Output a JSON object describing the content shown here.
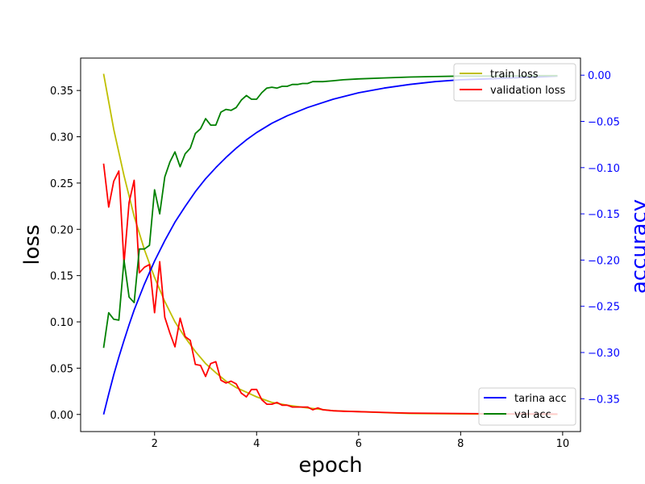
{
  "chart_data": {
    "type": "line",
    "xlabel": "epoch",
    "ylabel_left": "loss",
    "ylabel_right": "accuracy",
    "xlim": [
      0.55,
      10.35
    ],
    "ylim_left": [
      -0.0185,
      0.385
    ],
    "ylim_right": [
      -0.3855,
      0.0185
    ],
    "x_ticks": [
      2,
      4,
      6,
      8,
      10
    ],
    "y_ticks_left": [
      0.0,
      0.05,
      0.1,
      0.15,
      0.2,
      0.25,
      0.3,
      0.35
    ],
    "y_ticks_right": [
      -0.35,
      -0.3,
      -0.25,
      -0.2,
      -0.15,
      -0.1,
      -0.05,
      0.0
    ],
    "x_tick_labels": [
      "2",
      "4",
      "6",
      "8",
      "10"
    ],
    "y_tick_labels_left": [
      "0.00",
      "0.05",
      "0.10",
      "0.15",
      "0.20",
      "0.25",
      "0.30",
      "0.35"
    ],
    "y_tick_labels_right": [
      "−0.35",
      "−0.30",
      "−0.25",
      "−0.20",
      "−0.15",
      "−0.10",
      "−0.05",
      "0.00"
    ],
    "grid": false,
    "legends": [
      {
        "placement": "top-right",
        "entries": [
          "train loss",
          "validation loss"
        ]
      },
      {
        "placement": "bottom-right",
        "entries": [
          "tarina acc",
          "val acc"
        ]
      }
    ],
    "series": [
      {
        "name": "train loss",
        "axis": "left",
        "color": "#bfbf00",
        "x": [
          1.0,
          1.2,
          1.4,
          1.6,
          1.8,
          2.0,
          2.2,
          2.4,
          2.6,
          2.8,
          3.0,
          3.2,
          3.4,
          3.6,
          3.8,
          4.0,
          4.3,
          4.6,
          5.0,
          5.5,
          6.0,
          6.5,
          7.0,
          7.5,
          8.0,
          8.5,
          9.0,
          9.5,
          9.9
        ],
        "y": [
          0.368,
          0.308,
          0.258,
          0.214,
          0.178,
          0.148,
          0.122,
          0.1,
          0.083,
          0.068,
          0.055,
          0.045,
          0.036,
          0.029,
          0.024,
          0.019,
          0.013,
          0.01,
          0.007,
          0.004,
          0.003,
          0.002,
          0.001,
          0.0008,
          0.0006,
          0.0004,
          0.0003,
          0.0002,
          0.0001
        ]
      },
      {
        "name": "validation loss",
        "axis": "left",
        "color": "#ff0000",
        "x": [
          1.0,
          1.1,
          1.2,
          1.3,
          1.4,
          1.5,
          1.6,
          1.7,
          1.8,
          1.9,
          2.0,
          2.1,
          2.2,
          2.3,
          2.4,
          2.5,
          2.6,
          2.7,
          2.8,
          2.9,
          3.0,
          3.1,
          3.2,
          3.3,
          3.4,
          3.5,
          3.6,
          3.7,
          3.8,
          3.9,
          4.0,
          4.1,
          4.2,
          4.3,
          4.4,
          4.5,
          4.6,
          4.7,
          4.8,
          4.9,
          5.0,
          5.1,
          5.2,
          5.3,
          5.5,
          5.7,
          6.0,
          6.3,
          6.6,
          7.0,
          7.5,
          8.0,
          8.5,
          9.0,
          9.5,
          9.9
        ],
        "y": [
          0.271,
          0.224,
          0.252,
          0.263,
          0.163,
          0.229,
          0.253,
          0.153,
          0.159,
          0.162,
          0.11,
          0.165,
          0.105,
          0.088,
          0.073,
          0.104,
          0.084,
          0.08,
          0.054,
          0.053,
          0.041,
          0.055,
          0.057,
          0.037,
          0.034,
          0.036,
          0.033,
          0.023,
          0.019,
          0.027,
          0.027,
          0.016,
          0.011,
          0.011,
          0.013,
          0.01,
          0.01,
          0.008,
          0.008,
          0.008,
          0.008,
          0.005,
          0.007,
          0.005,
          0.004,
          0.0035,
          0.003,
          0.0025,
          0.002,
          0.0015,
          0.0012,
          0.001,
          0.0008,
          0.0006,
          0.0005,
          0.0004
        ]
      },
      {
        "name": "tarina acc",
        "axis": "right",
        "color": "#0000ff",
        "x": [
          1.0,
          1.1,
          1.2,
          1.3,
          1.4,
          1.5,
          1.6,
          1.8,
          2.0,
          2.2,
          2.4,
          2.6,
          2.8,
          3.0,
          3.2,
          3.4,
          3.6,
          3.8,
          4.0,
          4.3,
          4.6,
          5.0,
          5.5,
          6.0,
          6.5,
          7.0,
          7.5,
          8.0,
          8.5,
          9.0,
          9.5,
          9.9
        ],
        "y": [
          -0.367,
          -0.345,
          -0.324,
          -0.305,
          -0.287,
          -0.27,
          -0.254,
          -0.226,
          -0.201,
          -0.179,
          -0.159,
          -0.142,
          -0.126,
          -0.112,
          -0.1,
          -0.089,
          -0.079,
          -0.07,
          -0.062,
          -0.052,
          -0.044,
          -0.035,
          -0.026,
          -0.019,
          -0.014,
          -0.01,
          -0.007,
          -0.005,
          -0.004,
          -0.003,
          -0.002,
          -0.001
        ]
      },
      {
        "name": "val acc",
        "axis": "right",
        "color": "#008000",
        "x": [
          1.0,
          1.1,
          1.2,
          1.3,
          1.4,
          1.5,
          1.6,
          1.7,
          1.8,
          1.9,
          2.0,
          2.1,
          2.2,
          2.3,
          2.4,
          2.5,
          2.6,
          2.7,
          2.8,
          2.9,
          3.0,
          3.1,
          3.2,
          3.3,
          3.4,
          3.5,
          3.6,
          3.7,
          3.8,
          3.9,
          4.0,
          4.1,
          4.2,
          4.3,
          4.4,
          4.5,
          4.6,
          4.7,
          4.8,
          4.9,
          5.0,
          5.1,
          5.3,
          5.5,
          5.7,
          6.0,
          6.5,
          7.0,
          7.5,
          8.0,
          8.5,
          9.0,
          9.5,
          9.9
        ],
        "y": [
          -0.295,
          -0.257,
          -0.264,
          -0.265,
          -0.2,
          -0.24,
          -0.246,
          -0.188,
          -0.188,
          -0.184,
          -0.124,
          -0.15,
          -0.11,
          -0.094,
          -0.083,
          -0.099,
          -0.085,
          -0.079,
          -0.063,
          -0.058,
          -0.047,
          -0.054,
          -0.054,
          -0.04,
          -0.037,
          -0.038,
          -0.035,
          -0.027,
          -0.022,
          -0.026,
          -0.026,
          -0.019,
          -0.014,
          -0.013,
          -0.014,
          -0.012,
          -0.012,
          -0.01,
          -0.01,
          -0.009,
          -0.009,
          -0.007,
          -0.007,
          -0.006,
          -0.005,
          -0.004,
          -0.003,
          -0.002,
          -0.0015,
          -0.001,
          -0.001,
          -0.0008,
          -0.0005,
          -0.0005
        ]
      }
    ]
  }
}
